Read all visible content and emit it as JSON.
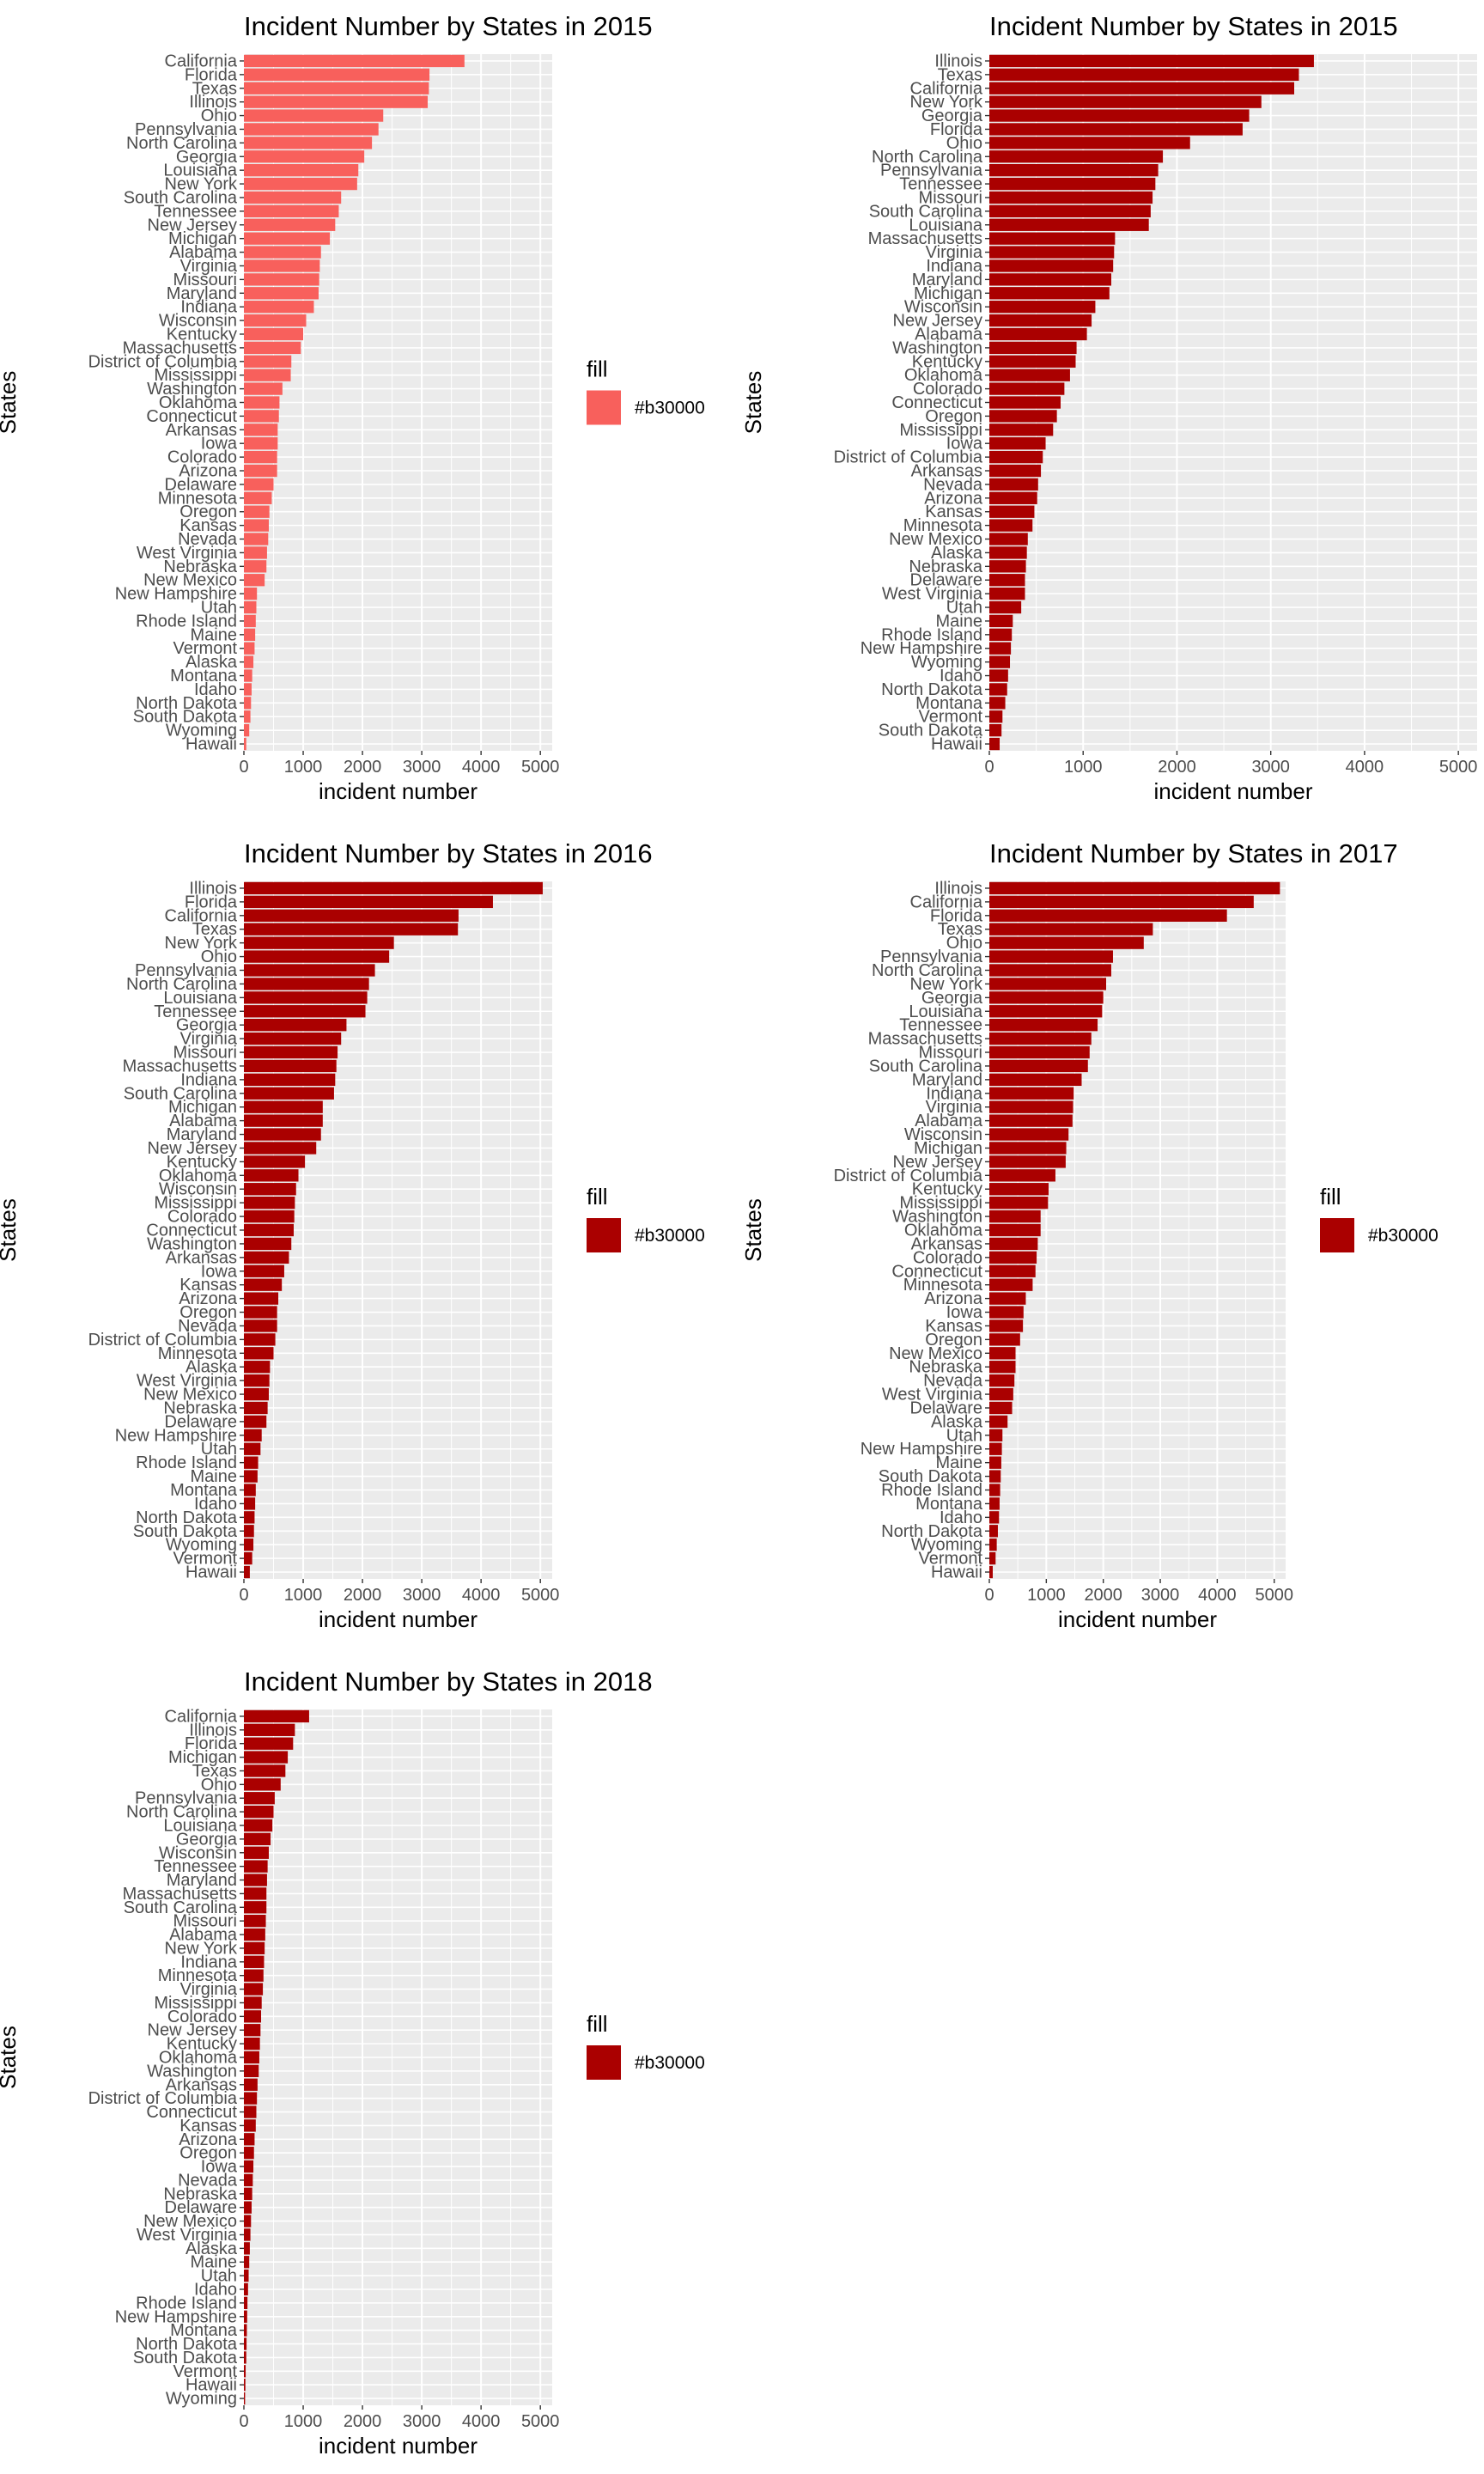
{
  "colors": {
    "panel_bg": "#ebebeb",
    "grid": "#ffffff",
    "text": "#000000",
    "tick_text": "#4d4d4d"
  },
  "chart_data": [
    {
      "type": "bar",
      "orientation": "horizontal",
      "title": "Incident Number by States in 2015",
      "xlabel": "incident number",
      "ylabel": "States",
      "xlim": [
        0,
        5200
      ],
      "xticks": [
        0,
        1000,
        2000,
        3000,
        4000,
        5000
      ],
      "legend": {
        "title": "fill",
        "label": "#b30000",
        "color": "#f8605c",
        "position": "right"
      },
      "bar_color": "#f8605c",
      "categories": [
        "California",
        "Florida",
        "Texas",
        "Illinois",
        "Ohio",
        "Pennsylvania",
        "North Carolina",
        "Georgia",
        "Louisiana",
        "New York",
        "South Carolina",
        "Tennessee",
        "New Jersey",
        "Michigan",
        "Alabama",
        "Virginia",
        "Missouri",
        "Maryland",
        "Indiana",
        "Wisconsin",
        "Kentucky",
        "Massachusetts",
        "District of Columbia",
        "Mississippi",
        "Washington",
        "Oklahoma",
        "Connecticut",
        "Arkansas",
        "Iowa",
        "Colorado",
        "Arizona",
        "Delaware",
        "Minnesota",
        "Oregon",
        "Kansas",
        "Nevada",
        "West Virginia",
        "Nebraska",
        "New Mexico",
        "New Hampshire",
        "Utah",
        "Rhode Island",
        "Maine",
        "Vermont",
        "Alaska",
        "Montana",
        "Idaho",
        "North Dakota",
        "South Dakota",
        "Wyoming",
        "Hawaii"
      ],
      "values": [
        3720,
        3130,
        3120,
        3100,
        2350,
        2270,
        2160,
        2030,
        1930,
        1910,
        1640,
        1600,
        1540,
        1450,
        1300,
        1280,
        1270,
        1260,
        1180,
        1050,
        1000,
        960,
        800,
        790,
        650,
        600,
        590,
        570,
        570,
        560,
        560,
        500,
        470,
        430,
        420,
        410,
        390,
        380,
        350,
        220,
        210,
        200,
        190,
        180,
        160,
        140,
        130,
        120,
        110,
        90,
        40
      ]
    },
    {
      "type": "bar",
      "orientation": "horizontal",
      "title": "Incident Number by States in 2015",
      "xlabel": "incident number",
      "ylabel": "States",
      "xlim": [
        0,
        5200
      ],
      "xticks": [
        0,
        1000,
        2000,
        3000,
        4000,
        5000
      ],
      "legend": null,
      "bar_color": "#aa0000",
      "categories": [
        "Illinois",
        "Texas",
        "California",
        "New York",
        "Georgia",
        "Florida",
        "Ohio",
        "North Carolina",
        "Pennsylvania",
        "Tennessee",
        "Missouri",
        "South Carolina",
        "Louisiana",
        "Massachusetts",
        "Virginia",
        "Indiana",
        "Maryland",
        "Michigan",
        "Wisconsin",
        "New Jersey",
        "Alabama",
        "Washington",
        "Kentucky",
        "Oklahoma",
        "Colorado",
        "Connecticut",
        "Oregon",
        "Mississippi",
        "Iowa",
        "District of Columbia",
        "Arkansas",
        "Nevada",
        "Arizona",
        "Kansas",
        "Minnesota",
        "New Mexico",
        "Alaska",
        "Nebraska",
        "Delaware",
        "West Virginia",
        "Utah",
        "Maine",
        "Rhode Island",
        "New Hampshire",
        "Wyoming",
        "Idaho",
        "North Dakota",
        "Montana",
        "Vermont",
        "South Dakota",
        "Hawaii"
      ],
      "values": [
        3460,
        3300,
        3250,
        2900,
        2770,
        2700,
        2140,
        1850,
        1800,
        1770,
        1740,
        1720,
        1700,
        1340,
        1330,
        1320,
        1300,
        1280,
        1130,
        1090,
        1040,
        930,
        920,
        860,
        800,
        760,
        720,
        680,
        600,
        570,
        550,
        520,
        510,
        480,
        460,
        410,
        400,
        390,
        380,
        380,
        340,
        250,
        240,
        230,
        220,
        200,
        190,
        170,
        140,
        130,
        110
      ]
    },
    {
      "type": "bar",
      "orientation": "horizontal",
      "title": "Incident Number by States in 2016",
      "xlabel": "incident number",
      "ylabel": "States",
      "xlim": [
        0,
        5200
      ],
      "xticks": [
        0,
        1000,
        2000,
        3000,
        4000,
        5000
      ],
      "legend": {
        "title": "fill",
        "label": "#b30000",
        "color": "#aa0000",
        "position": "right"
      },
      "bar_color": "#aa0000",
      "categories": [
        "Illinois",
        "Florida",
        "California",
        "Texas",
        "New York",
        "Ohio",
        "Pennsylvania",
        "North Carolina",
        "Louisiana",
        "Tennessee",
        "Georgia",
        "Virginia",
        "Missouri",
        "Massachusetts",
        "Indiana",
        "South Carolina",
        "Michigan",
        "Alabama",
        "Maryland",
        "New Jersey",
        "Kentucky",
        "Oklahoma",
        "Wisconsin",
        "Mississippi",
        "Colorado",
        "Connecticut",
        "Washington",
        "Arkansas",
        "Iowa",
        "Kansas",
        "Arizona",
        "Oregon",
        "Nevada",
        "District of Columbia",
        "Minnesota",
        "Alaska",
        "West Virginia",
        "New Mexico",
        "Nebraska",
        "Delaware",
        "New Hampshire",
        "Utah",
        "Rhode Island",
        "Maine",
        "Montana",
        "Idaho",
        "North Dakota",
        "South Dakota",
        "Wyoming",
        "Vermont",
        "Hawaii"
      ],
      "values": [
        5040,
        4200,
        3620,
        3610,
        2530,
        2450,
        2210,
        2110,
        2080,
        2050,
        1730,
        1640,
        1580,
        1560,
        1540,
        1520,
        1330,
        1330,
        1300,
        1220,
        1030,
        920,
        880,
        860,
        850,
        840,
        800,
        760,
        680,
        640,
        580,
        560,
        560,
        530,
        500,
        440,
        430,
        420,
        400,
        380,
        300,
        280,
        240,
        230,
        200,
        190,
        180,
        170,
        160,
        140,
        100
      ]
    },
    {
      "type": "bar",
      "orientation": "horizontal",
      "title": "Incident Number by States in 2017",
      "xlabel": "incident number",
      "ylabel": "States",
      "xlim": [
        0,
        5200
      ],
      "xticks": [
        0,
        1000,
        2000,
        3000,
        4000,
        5000
      ],
      "legend": {
        "title": "fill",
        "label": "#b30000",
        "color": "#aa0000",
        "position": "right"
      },
      "bar_color": "#aa0000",
      "categories": [
        "Illinois",
        "California",
        "Florida",
        "Texas",
        "Ohio",
        "Pennsylvania",
        "North Carolina",
        "New York",
        "Georgia",
        "Louisiana",
        "Tennessee",
        "Massachusetts",
        "Missouri",
        "South Carolina",
        "Maryland",
        "Indiana",
        "Virginia",
        "Alabama",
        "Wisconsin",
        "Michigan",
        "New Jersey",
        "District of Columbia",
        "Kentucky",
        "Mississippi",
        "Washington",
        "Oklahoma",
        "Arkansas",
        "Colorado",
        "Connecticut",
        "Minnesota",
        "Arizona",
        "Iowa",
        "Kansas",
        "Oregon",
        "New Mexico",
        "Nebraska",
        "Nevada",
        "West Virginia",
        "Delaware",
        "Alaska",
        "Utah",
        "New Hampshire",
        "Maine",
        "South Dakota",
        "Rhode Island",
        "Montana",
        "Idaho",
        "North Dakota",
        "Wyoming",
        "Vermont",
        "Hawaii"
      ],
      "values": [
        5100,
        4640,
        4170,
        2870,
        2710,
        2170,
        2140,
        2050,
        2000,
        1980,
        1900,
        1790,
        1760,
        1730,
        1620,
        1480,
        1470,
        1460,
        1390,
        1350,
        1340,
        1160,
        1040,
        1030,
        900,
        900,
        850,
        830,
        810,
        760,
        640,
        600,
        590,
        540,
        460,
        460,
        440,
        420,
        400,
        320,
        230,
        220,
        210,
        200,
        190,
        180,
        170,
        150,
        130,
        110,
        60
      ]
    },
    {
      "type": "bar",
      "orientation": "horizontal",
      "title": "Incident Number by States in 2018",
      "xlabel": "incident number",
      "ylabel": "States",
      "xlim": [
        0,
        5200
      ],
      "xticks": [
        0,
        1000,
        2000,
        3000,
        4000,
        5000
      ],
      "legend": {
        "title": "fill",
        "label": "#b30000",
        "color": "#aa0000",
        "position": "right"
      },
      "bar_color": "#aa0000",
      "categories": [
        "California",
        "Illinois",
        "Florida",
        "Michigan",
        "Texas",
        "Ohio",
        "Pennsylvania",
        "North Carolina",
        "Louisiana",
        "Georgia",
        "Wisconsin",
        "Tennessee",
        "Maryland",
        "Massachusetts",
        "South Carolina",
        "Missouri",
        "Alabama",
        "New York",
        "Indiana",
        "Minnesota",
        "Virginia",
        "Mississippi",
        "Colorado",
        "New Jersey",
        "Kentucky",
        "Oklahoma",
        "Washington",
        "Arkansas",
        "District of Columbia",
        "Connecticut",
        "Kansas",
        "Arizona",
        "Oregon",
        "Iowa",
        "Nevada",
        "Nebraska",
        "Delaware",
        "New Mexico",
        "West Virginia",
        "Alaska",
        "Maine",
        "Utah",
        "Idaho",
        "Rhode Island",
        "New Hampshire",
        "Montana",
        "North Dakota",
        "South Dakota",
        "Vermont",
        "Hawaii",
        "Wyoming"
      ],
      "values": [
        1100,
        860,
        830,
        740,
        700,
        620,
        520,
        500,
        480,
        450,
        420,
        400,
        390,
        380,
        380,
        370,
        360,
        350,
        340,
        330,
        320,
        300,
        290,
        280,
        270,
        260,
        250,
        230,
        220,
        210,
        200,
        180,
        170,
        160,
        150,
        140,
        130,
        120,
        110,
        100,
        90,
        80,
        70,
        60,
        55,
        50,
        45,
        40,
        30,
        25,
        20
      ]
    }
  ]
}
